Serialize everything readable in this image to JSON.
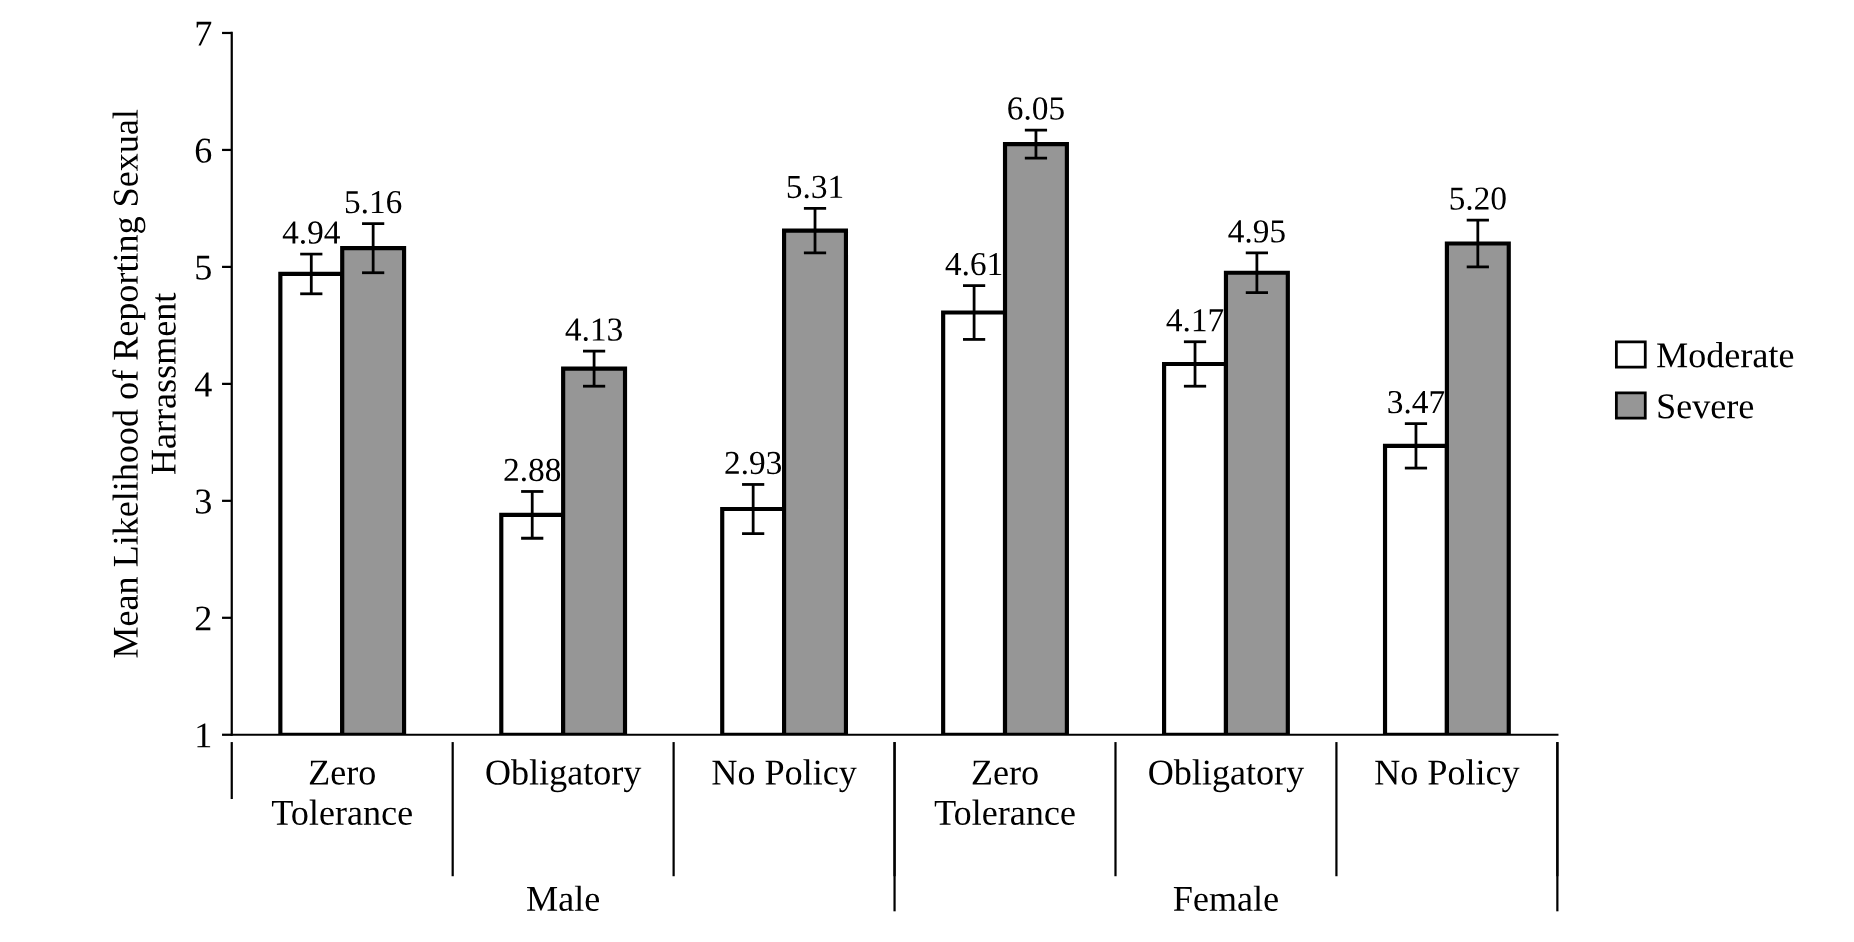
{
  "chart_data": {
    "type": "bar",
    "ylabel": "Mean Likelihood of Reporting Sexual\nHarrassment",
    "categories": [
      "Zero\nTolerance",
      "Obligatory",
      "No Policy",
      "Zero\nTolerance",
      "Obligatory",
      "No Policy"
    ],
    "series": [
      {
        "name": "Moderate",
        "color": "#ffffff",
        "values": [
          4.94,
          2.88,
          2.93,
          4.61,
          4.17,
          3.47
        ],
        "errors": [
          0.17,
          0.2,
          0.21,
          0.23,
          0.19,
          0.19
        ],
        "value_labels": [
          "4.94",
          "2.88",
          "2.93",
          "4.61",
          "4.17",
          "3.47"
        ]
      },
      {
        "name": "Severe",
        "color": "#969696",
        "values": [
          5.16,
          4.13,
          5.31,
          6.05,
          4.95,
          5.2
        ],
        "errors": [
          0.21,
          0.15,
          0.19,
          0.12,
          0.17,
          0.2
        ],
        "value_labels": [
          "5.16",
          "4.13",
          "5.31",
          "6.05",
          "4.95",
          "5.20"
        ]
      }
    ],
    "annotations": [
      "Male",
      "Female"
    ],
    "ylim": [
      1,
      7
    ],
    "yticks": [
      1,
      2,
      3,
      4,
      5,
      6,
      7
    ],
    "grid": false,
    "legend": "right"
  }
}
